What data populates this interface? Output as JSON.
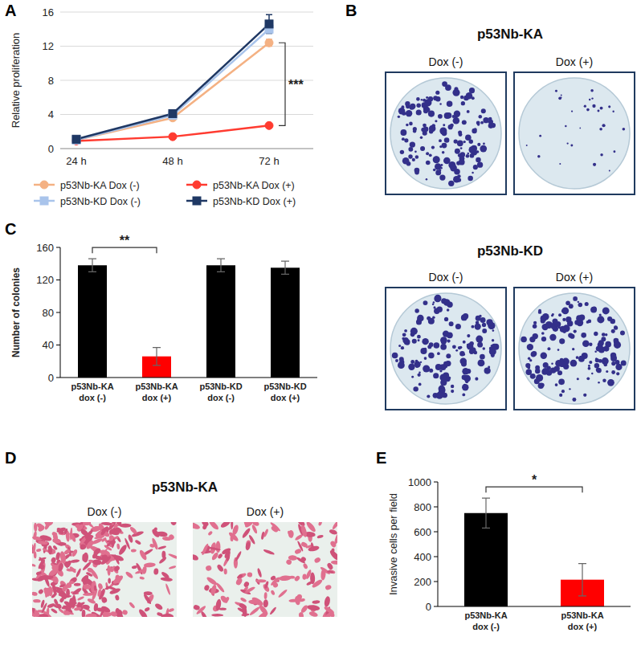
{
  "chart_data": [
    {
      "panel": "A",
      "type": "line",
      "ylabel": "Relative proliferation",
      "categories": [
        "24 h",
        "48 h",
        "72 h"
      ],
      "ylim": [
        0,
        16
      ],
      "yticks": [
        0,
        4,
        8,
        12,
        16
      ],
      "grid": true,
      "legend": "bottom",
      "series": [
        {
          "name": "p53Nb-KA Dox (-)",
          "color": "#f4b183",
          "marker": "circle",
          "values": [
            1.0,
            3.6,
            12.4
          ],
          "errors": [
            0.1,
            0.2,
            0.4
          ]
        },
        {
          "name": "p53Nb-KA Dox (+)",
          "color": "#ff3b30",
          "marker": "circle",
          "values": [
            0.9,
            1.4,
            2.7
          ],
          "errors": [
            0.1,
            0.1,
            0.2
          ]
        },
        {
          "name": "p53Nb-KD Dox (-)",
          "color": "#a9c4eb",
          "marker": "square",
          "values": [
            1.0,
            3.9,
            14.0
          ],
          "errors": [
            0.1,
            0.2,
            0.5
          ]
        },
        {
          "name": "p53Nb-KD Dox (+)",
          "color": "#1f3864",
          "marker": "square",
          "values": [
            1.1,
            4.1,
            14.6
          ],
          "errors": [
            0.1,
            0.3,
            1.1
          ]
        }
      ],
      "annotations": [
        {
          "text": "***",
          "category": 2,
          "series": [
            0,
            1
          ]
        }
      ]
    },
    {
      "panel": "C",
      "type": "bar",
      "ylabel": "Number of colonies",
      "categories": [
        "p53Nb-KA dox (-)",
        "p53Nb-KA dox (+)",
        "p53Nb-KD dox (-)",
        "p53Nb-KD dox (+)"
      ],
      "values": [
        138,
        26,
        138,
        135
      ],
      "errors": [
        8,
        11,
        8,
        8
      ],
      "colors": [
        "#000000",
        "#ff0000",
        "#000000",
        "#000000"
      ],
      "ylim": [
        0,
        160
      ],
      "yticks": [
        0,
        40,
        80,
        120,
        160
      ],
      "grid": false,
      "annotations": [
        {
          "text": "**",
          "categories": [
            0,
            1
          ]
        }
      ]
    },
    {
      "panel": "E",
      "type": "bar",
      "ylabel": "Invasive cells per field",
      "categories": [
        "p53Nb-KA dox (-)",
        "p53Nb-KA dox (+)"
      ],
      "values": [
        750,
        215
      ],
      "errors": [
        120,
        130
      ],
      "colors": [
        "#000000",
        "#ff0000"
      ],
      "ylim": [
        0,
        1000
      ],
      "yticks": [
        0,
        200,
        400,
        600,
        800,
        1000
      ],
      "grid": false,
      "annotations": [
        {
          "text": "*",
          "categories": [
            0,
            1
          ]
        }
      ]
    }
  ],
  "images": [
    {
      "panel": "B",
      "groups": [
        {
          "title": "p53Nb-KA",
          "labels": [
            "Dox (-)",
            "Dox (+)"
          ]
        },
        {
          "title": "p53Nb-KD",
          "labels": [
            "Dox (-)",
            "Dox (+)"
          ]
        }
      ]
    },
    {
      "panel": "D",
      "groups": [
        {
          "title": "p53Nb-KA",
          "labels": [
            "Dox (-)",
            "Dox (+)"
          ]
        }
      ]
    }
  ]
}
